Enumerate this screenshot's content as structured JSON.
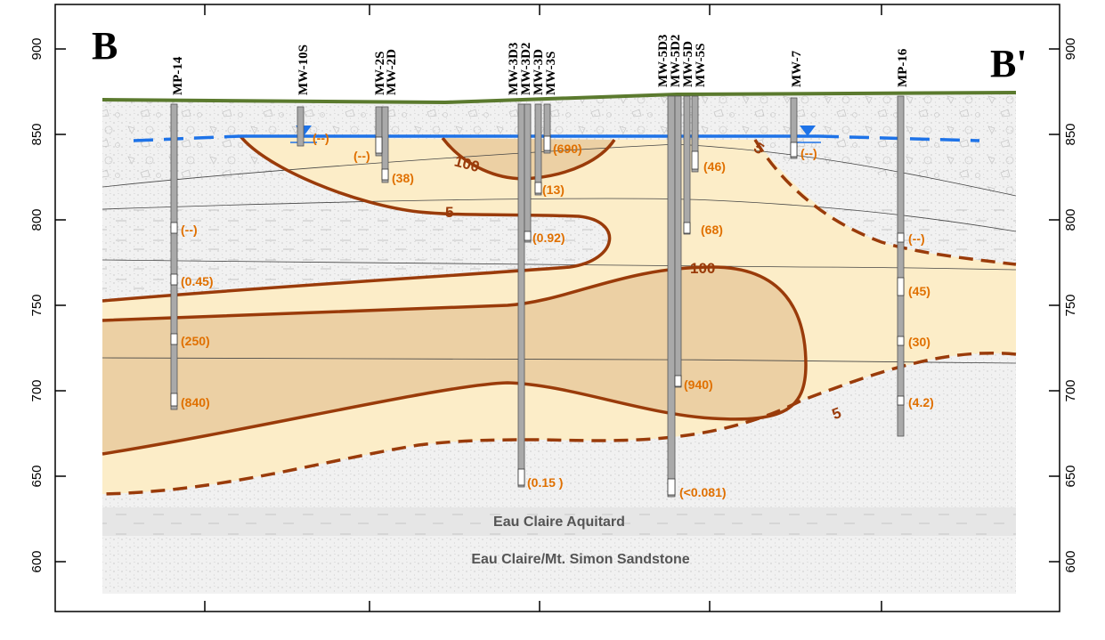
{
  "title_left": "B",
  "title_right": "B'",
  "axis": {
    "ticks": [
      "900",
      "850",
      "800",
      "750",
      "700",
      "650",
      "600"
    ]
  },
  "wells": [
    {
      "name": "MP-14"
    },
    {
      "name": "MW-10S"
    },
    {
      "name": "MW-2S"
    },
    {
      "name": "MW-2D"
    },
    {
      "name": "MW-3D3"
    },
    {
      "name": "MW-3D2"
    },
    {
      "name": "MW-3D"
    },
    {
      "name": "MW-3S"
    },
    {
      "name": "MW-5D3"
    },
    {
      "name": "MW-5D2"
    },
    {
      "name": "MW-5D"
    },
    {
      "name": "MW-5S"
    },
    {
      "name": "MW-7"
    },
    {
      "name": "MP-16"
    }
  ],
  "concentrations": [
    "(--)",
    "(--)",
    "(38)",
    "(690)",
    "(13)",
    "(0.92)",
    "(46)",
    "(68)",
    "(--)",
    "(--)",
    "(0.45)",
    "(250)",
    "(840)",
    "(45)",
    "(30)",
    "(4.2)",
    "(940)",
    "(0.15 )",
    "(<0.081)",
    "(--)"
  ],
  "contours": [
    "100",
    "5",
    "5",
    "100",
    "5"
  ],
  "units": {
    "aquitard": "Eau Claire Aquitard",
    "sandstone": "Eau Claire/Mt. Simon Sandstone"
  },
  "colors": {
    "contour": "#9a3b0a",
    "water_table": "#1e73e8",
    "label": "#e07000",
    "plume_low": "#fcedc8",
    "plume_high": "#ecd0a4",
    "ground": "#5b7a2e"
  }
}
